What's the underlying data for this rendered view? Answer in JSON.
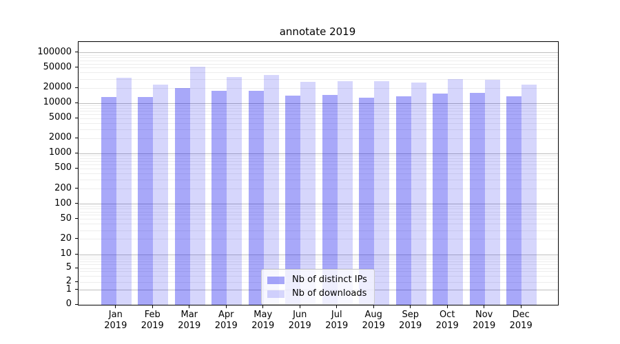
{
  "chart_data": {
    "type": "bar",
    "title": "annotate 2019",
    "xlabel": "",
    "ylabel": "",
    "yscale": "symlog",
    "ylim": [
      0,
      165000
    ],
    "grid": "both",
    "categories": [
      "Jan 2019",
      "Feb 2019",
      "Mar 2019",
      "Apr 2019",
      "May 2019",
      "Jun 2019",
      "Jul 2019",
      "Aug 2019",
      "Sep 2019",
      "Oct 2019",
      "Nov 2019",
      "Dec 2019"
    ],
    "y_tick_labels": [
      100000,
      50000,
      20000,
      10000,
      5000,
      2000,
      1000,
      500,
      200,
      100,
      50,
      20,
      10,
      5,
      2,
      1,
      0
    ],
    "series": [
      {
        "name": "Nb of distinct IPs",
        "fill": "rgba(0,0,238,0.34)",
        "values": [
          13500,
          13200,
          20000,
          17600,
          17800,
          14300,
          14700,
          12700,
          13700,
          15700,
          16200,
          13600
        ]
      },
      {
        "name": "Nb of downloads",
        "fill": "rgba(0,0,238,0.16)",
        "values": [
          32500,
          23500,
          52500,
          33000,
          36500,
          26200,
          27600,
          27800,
          25900,
          30500,
          29000,
          23500
        ]
      }
    ],
    "legend": {
      "position": "lower-center",
      "background": "rgba(255,255,255,0.8)",
      "border_color": "#cccccc"
    },
    "colors": {
      "grid_major": "#bdbdbd",
      "grid_minor": "#ededed",
      "spine": "#000000"
    }
  }
}
